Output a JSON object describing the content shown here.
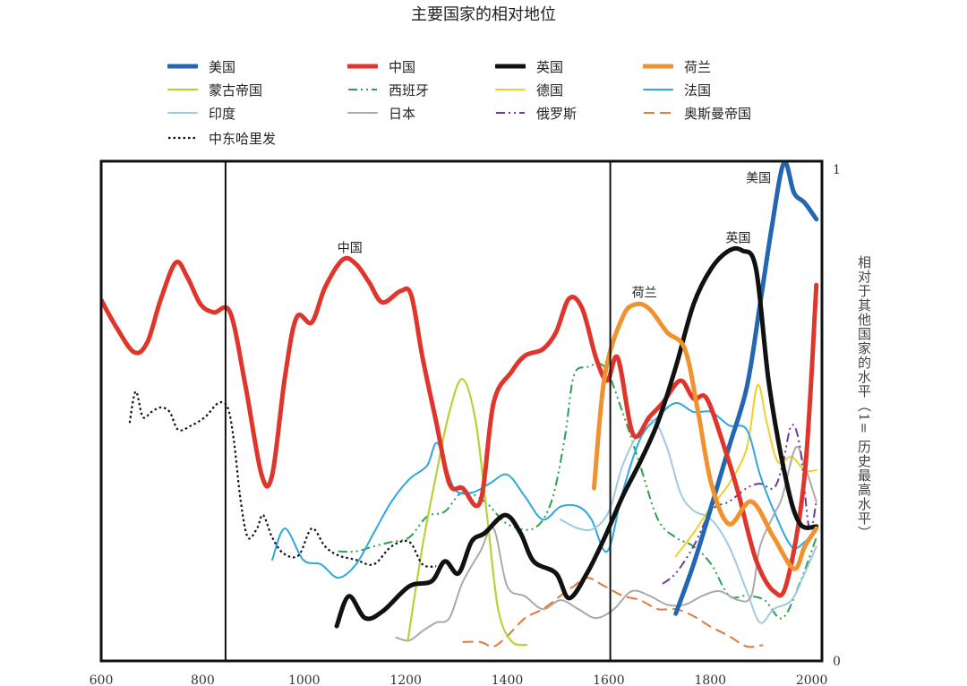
{
  "chart_data": {
    "type": "line",
    "title": "主要国家的相对地位",
    "xlabel": "",
    "ylabel": "相对于其他国家的水平（1= 历史最高水平）",
    "xlim": [
      600,
      2020
    ],
    "ylim": [
      0,
      1
    ],
    "x_ticks": [
      600,
      800,
      1000,
      1200,
      1400,
      1600,
      1800,
      2000
    ],
    "y_ticks": [
      0,
      1
    ],
    "vertical_markers": [
      845,
      1603
    ],
    "legend_position": "top",
    "annotations": [
      {
        "text": "中国",
        "x": 1090,
        "y": 0.83
      },
      {
        "text": "荷兰",
        "x": 1670,
        "y": 0.74
      },
      {
        "text": "英国",
        "x": 1855,
        "y": 0.85
      },
      {
        "text": "美国",
        "x": 1895,
        "y": 0.97
      }
    ],
    "series": [
      {
        "name": "美国",
        "color": "#2366b1",
        "style": "solid",
        "width": 5,
        "x": [
          1732,
          1767,
          1802,
          1837,
          1872,
          1898,
          1921,
          1945,
          1965,
          1986,
          2009
        ],
        "y": [
          0.095,
          0.194,
          0.31,
          0.43,
          0.55,
          0.716,
          0.87,
          1.0,
          0.94,
          0.92,
          0.887
        ]
      },
      {
        "name": "中国",
        "color": "#e0352b",
        "style": "solid",
        "width": 5,
        "x": [
          600,
          630,
          665,
          691,
          717,
          747,
          770,
          796,
          822,
          854,
          884,
          916,
          937,
          962,
          985,
          1015,
          1041,
          1076,
          1102,
          1128,
          1154,
          1190,
          1211,
          1233,
          1260,
          1286,
          1312,
          1347,
          1373,
          1408,
          1435,
          1470,
          1496,
          1522,
          1548,
          1575,
          1597,
          1618,
          1648,
          1680,
          1706,
          1741,
          1767,
          1793,
          1828,
          1855,
          1890,
          1925,
          1951,
          1986,
          2009
        ],
        "y": [
          0.725,
          0.67,
          0.62,
          0.64,
          0.725,
          0.8,
          0.77,
          0.716,
          0.7,
          0.7,
          0.554,
          0.374,
          0.374,
          0.57,
          0.69,
          0.68,
          0.75,
          0.806,
          0.797,
          0.76,
          0.72,
          0.743,
          0.734,
          0.61,
          0.48,
          0.356,
          0.347,
          0.32,
          0.518,
          0.58,
          0.613,
          0.626,
          0.66,
          0.728,
          0.707,
          0.608,
          0.563,
          0.608,
          0.455,
          0.49,
          0.518,
          0.563,
          0.527,
          0.527,
          0.428,
          0.338,
          0.203,
          0.14,
          0.158,
          0.374,
          0.755
        ]
      },
      {
        "name": "英国",
        "color": "#111111",
        "style": "solid",
        "width": 5,
        "x": [
          1064,
          1088,
          1120,
          1155,
          1207,
          1251,
          1277,
          1304,
          1330,
          1356,
          1396,
          1426,
          1452,
          1496,
          1522,
          1557,
          1592,
          1627,
          1662,
          1697,
          1732,
          1767,
          1802,
          1837,
          1863,
          1890,
          1916,
          1951,
          1977,
          2009
        ],
        "y": [
          0.07,
          0.13,
          0.086,
          0.1,
          0.15,
          0.16,
          0.2,
          0.176,
          0.24,
          0.257,
          0.293,
          0.257,
          0.2,
          0.176,
          0.126,
          0.176,
          0.248,
          0.33,
          0.4,
          0.48,
          0.59,
          0.716,
          0.788,
          0.824,
          0.824,
          0.788,
          0.554,
          0.356,
          0.275,
          0.27
        ]
      },
      {
        "name": "荷兰",
        "color": "#f0922f",
        "style": "solid",
        "width": 5,
        "x": [
          1571,
          1592,
          1627,
          1653,
          1680,
          1715,
          1750,
          1776,
          1802,
          1837,
          1881,
          1925,
          1965,
          1986,
          2009
        ],
        "y": [
          0.347,
          0.572,
          0.69,
          0.716,
          0.707,
          0.66,
          0.626,
          0.5,
          0.356,
          0.275,
          0.32,
          0.248,
          0.185,
          0.23,
          0.266
        ]
      },
      {
        "name": "蒙古帝国",
        "color": "#b6d335",
        "style": "solid",
        "width": 2.2,
        "x": [
          1204,
          1233,
          1260,
          1286,
          1312,
          1338,
          1361,
          1382,
          1408,
          1438
        ],
        "y": [
          0.04,
          0.23,
          0.374,
          0.5,
          0.566,
          0.48,
          0.284,
          0.104,
          0.04,
          0.032
        ]
      },
      {
        "name": "西班牙",
        "color": "#2e9e4f",
        "style": "dashdot",
        "width": 2,
        "x": [
          1067,
          1102,
          1137,
          1172,
          1207,
          1242,
          1277,
          1312,
          1356,
          1400,
          1452,
          1487,
          1513,
          1531,
          1557,
          1592,
          1627,
          1662,
          1697,
          1732,
          1767,
          1802,
          1837,
          1872,
          1907,
          1942,
          1977,
          2009
        ],
        "y": [
          0.22,
          0.22,
          0.23,
          0.239,
          0.248,
          0.29,
          0.3,
          0.338,
          0.32,
          0.275,
          0.266,
          0.32,
          0.446,
          0.572,
          0.59,
          0.59,
          0.5,
          0.392,
          0.284,
          0.248,
          0.23,
          0.194,
          0.131,
          0.131,
          0.122,
          0.086,
          0.158,
          0.248
        ]
      },
      {
        "name": "德国",
        "color": "#f2cf25",
        "style": "solid",
        "width": 2,
        "x": [
          1732,
          1767,
          1802,
          1837,
          1872,
          1893,
          1911,
          1933,
          1960,
          1986,
          2009
        ],
        "y": [
          0.21,
          0.257,
          0.31,
          0.356,
          0.428,
          0.554,
          0.48,
          0.4,
          0.41,
          0.383,
          0.383
        ]
      },
      {
        "name": "法国",
        "color": "#2ea7e0",
        "style": "solid",
        "width": 2,
        "x": [
          937,
          962,
          998,
          1033,
          1067,
          1102,
          1137,
          1172,
          1207,
          1242,
          1263,
          1295,
          1330,
          1365,
          1400,
          1435,
          1470,
          1505,
          1540,
          1566,
          1597,
          1627,
          1662,
          1697,
          1732,
          1767,
          1802,
          1837,
          1872,
          1898,
          1925,
          1960,
          1986,
          2009
        ],
        "y": [
          0.203,
          0.266,
          0.203,
          0.194,
          0.167,
          0.194,
          0.257,
          0.32,
          0.365,
          0.392,
          0.437,
          0.347,
          0.338,
          0.356,
          0.374,
          0.33,
          0.284,
          0.31,
          0.31,
          0.284,
          0.22,
          0.338,
          0.446,
          0.49,
          0.518,
          0.5,
          0.5,
          0.473,
          0.464,
          0.374,
          0.302,
          0.23,
          0.239,
          0.266
        ]
      },
      {
        "name": "印度",
        "color": "#9fcbe2",
        "style": "solid",
        "width": 2,
        "x": [
          1505,
          1540,
          1571,
          1601,
          1627,
          1662,
          1689,
          1715,
          1741,
          1767,
          1802,
          1837,
          1872,
          1898,
          1925,
          1960,
          1986,
          2009
        ],
        "y": [
          0.284,
          0.266,
          0.266,
          0.302,
          0.392,
          0.464,
          0.482,
          0.428,
          0.338,
          0.302,
          0.284,
          0.23,
          0.14,
          0.077,
          0.104,
          0.122,
          0.176,
          0.23
        ]
      },
      {
        "name": "日本",
        "color": "#aaaaaa",
        "style": "solid",
        "width": 2,
        "x": [
          1181,
          1207,
          1233,
          1260,
          1286,
          1312,
          1347,
          1373,
          1400,
          1435,
          1470,
          1505,
          1540,
          1575,
          1610,
          1645,
          1680,
          1715,
          1750,
          1785,
          1819,
          1855,
          1881,
          1898,
          1925,
          1942,
          1968,
          1986,
          2009
        ],
        "y": [
          0.047,
          0.041,
          0.06,
          0.077,
          0.086,
          0.158,
          0.22,
          0.266,
          0.15,
          0.13,
          0.104,
          0.122,
          0.104,
          0.086,
          0.104,
          0.14,
          0.131,
          0.113,
          0.113,
          0.131,
          0.14,
          0.122,
          0.131,
          0.23,
          0.293,
          0.33,
          0.428,
          0.392,
          0.32
        ]
      },
      {
        "name": "俄罗斯",
        "color": "#6a3d9a",
        "style": "dashdot",
        "width": 2,
        "x": [
          1706,
          1732,
          1767,
          1802,
          1837,
          1872,
          1898,
          1925,
          1942,
          1960,
          1977,
          1995,
          2009
        ],
        "y": [
          0.155,
          0.176,
          0.23,
          0.302,
          0.32,
          0.347,
          0.356,
          0.347,
          0.392,
          0.473,
          0.428,
          0.266,
          0.32
        ]
      },
      {
        "name": "奥斯曼帝国",
        "color": "#e07a3a",
        "style": "dashed",
        "width": 2,
        "x": [
          1312,
          1347,
          1373,
          1400,
          1435,
          1470,
          1505,
          1531,
          1557,
          1592,
          1627,
          1662,
          1697,
          1732,
          1767,
          1802,
          1837,
          1872,
          1904
        ],
        "y": [
          0.038,
          0.038,
          0.029,
          0.05,
          0.086,
          0.104,
          0.131,
          0.15,
          0.167,
          0.15,
          0.131,
          0.122,
          0.104,
          0.104,
          0.09,
          0.068,
          0.05,
          0.029,
          0.032
        ]
      },
      {
        "name": "中东哈里发",
        "color": "#111111",
        "style": "dotted",
        "width": 2.2,
        "x": [
          656,
          668,
          682,
          699,
          717,
          735,
          752,
          778,
          805,
          831,
          849,
          861,
          875,
          889,
          907,
          919,
          937,
          959,
          989,
          1015,
          1041,
          1067,
          1102,
          1137,
          1172,
          1207,
          1233,
          1260
        ],
        "y": [
          0.478,
          0.541,
          0.49,
          0.5,
          0.509,
          0.5,
          0.464,
          0.473,
          0.49,
          0.518,
          0.509,
          0.446,
          0.32,
          0.248,
          0.266,
          0.293,
          0.248,
          0.216,
          0.212,
          0.266,
          0.23,
          0.212,
          0.203,
          0.194,
          0.23,
          0.239,
          0.194,
          0.19
        ]
      }
    ]
  }
}
